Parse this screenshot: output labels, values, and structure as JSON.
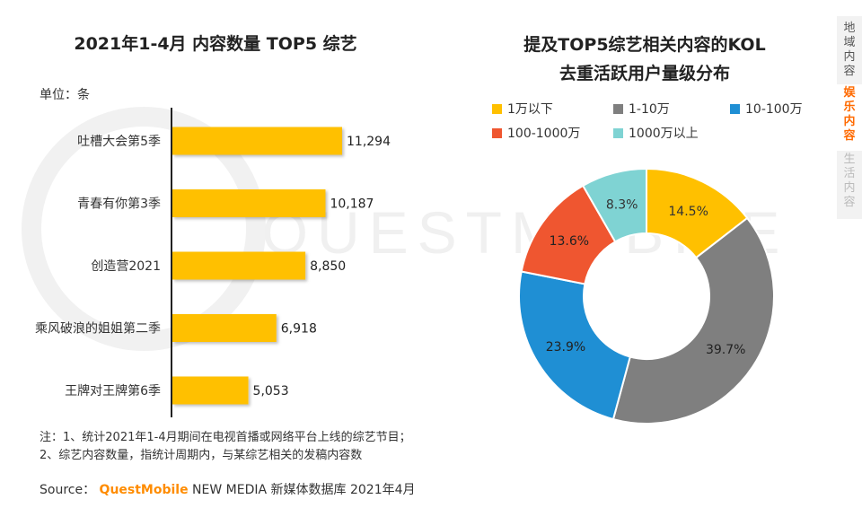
{
  "watermark": "QUESTMOBILE",
  "left_chart": {
    "title": "2021年1-4月 内容数量 TOP5 综艺",
    "unit": "单位：条"
  },
  "right_chart": {
    "title_line1": "提及TOP5综艺相关内容的KOL",
    "title_line2": "去重活跃用户量级分布"
  },
  "side_tabs": [
    {
      "label": "地域内容",
      "state": "normal"
    },
    {
      "label": "娱乐内容",
      "state": "active"
    },
    {
      "label": "生活内容",
      "state": "dim"
    }
  ],
  "notes": {
    "line1": "注：1、统计2021年1-4月期间在电视首播或网络平台上线的综艺节目；",
    "line2": "2、综艺内容数量，指统计周期内，与某综艺相关的发稿内容数"
  },
  "source": {
    "prefix": "Source：",
    "brand": "QuestMobile",
    "suffix": " NEW MEDIA 新媒体数据库 2021年4月"
  },
  "colors": {
    "bar": "#FFC000",
    "accent": "#FF8C00"
  },
  "chart_data": [
    {
      "type": "bar",
      "orientation": "horizontal",
      "title": "2021年1-4月 内容数量 TOP5 综艺",
      "unit": "单位：条",
      "categories": [
        "吐槽大会第5季",
        "青春有你第3季",
        "创造营2021",
        "乘风破浪的姐姐第二季",
        "王牌对王牌第6季"
      ],
      "values": [
        11294,
        10187,
        8850,
        6918,
        5053
      ],
      "value_labels": [
        "11,294",
        "10,187",
        "8,850",
        "6,918",
        "5,053"
      ],
      "xlim": [
        0,
        11294
      ],
      "grid": false
    },
    {
      "type": "pie",
      "style": "donut",
      "title": "提及TOP5综艺相关内容的KOL 去重活跃用户量级分布",
      "categories": [
        "1万以下",
        "1-10万",
        "10-100万",
        "100-1000万",
        "1000万以上"
      ],
      "values": [
        14.5,
        39.7,
        23.9,
        13.6,
        8.3
      ],
      "value_labels": [
        "14.5%",
        "39.7%",
        "23.9%",
        "13.6%",
        "8.3%"
      ],
      "colors": [
        "#FFC000",
        "#7F7F7F",
        "#1F8FD4",
        "#EF5630",
        "#7FD3D3"
      ],
      "start": "top",
      "direction": "clockwise",
      "legend_position": "top"
    }
  ]
}
